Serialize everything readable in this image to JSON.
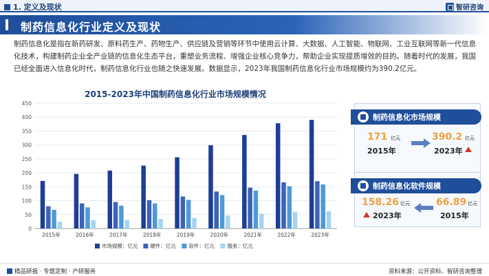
{
  "header": {
    "section": "1. 定义及现状",
    "logo": "智研咨询"
  },
  "title": "制药信息化行业定义及现状",
  "paragraph": "制药信息化是指在新药研发、原料药生产、药物生产、供应链及营销等环节中使用云计算、大数据、人工智能、物联网、工业互联网等新一代信息化技术，构建制药企业全产业链的信息化生态平台，重塑业务流程、增强企业核心竞争力，帮助企业实现提质增效的目的。随着时代的发展，我国已经全面进入信息化时代，制药信息化行业也随之快速发展。数据显示，2023年我国制药信息化行业市场规模约为390.2亿元。",
  "chart_data": {
    "type": "bar",
    "title": "2015-2023年中国制药信息化行业市场规模情况",
    "categories": [
      "2015年",
      "2016年",
      "2017年",
      "2018年",
      "2019年",
      "2020年",
      "2021年",
      "2022年",
      "2023年"
    ],
    "series": [
      {
        "name": "市场规模：亿元",
        "color": "#1c3f94",
        "values": [
          171,
          196,
          208,
          226,
          256,
          299,
          336,
          378,
          390.2
        ]
      },
      {
        "name": "硬件：亿元",
        "color": "#3d63b8",
        "values": [
          80,
          90,
          95,
          102,
          115,
          133,
          147,
          166,
          170
        ]
      },
      {
        "name": "软件：亿元",
        "color": "#4e9ad6",
        "values": [
          67,
          76,
          82,
          90,
          103,
          120,
          136,
          152,
          158.26
        ]
      },
      {
        "name": "服务：亿元",
        "color": "#a8d2f0",
        "values": [
          24,
          30,
          31,
          34,
          38,
          46,
          53,
          60,
          61.94
        ]
      }
    ],
    "yticks": [
      0,
      50,
      100,
      150,
      200,
      250,
      300,
      350,
      400,
      450
    ],
    "ylim": [
      0,
      450
    ],
    "legend": "bottom"
  },
  "cards": [
    {
      "title": "制药信息化市场规模",
      "left_value": "171",
      "left_unit": "亿元",
      "left_year": "2015年",
      "right_value": "390.2",
      "right_unit": "亿元",
      "right_year": "2023年"
    },
    {
      "title": "制药信息化软件规模",
      "left_value": "158.26",
      "left_unit": "亿元",
      "left_year": "2023年",
      "right_value": "66.89",
      "right_unit": "亿元",
      "right_year": "2015年"
    }
  ],
  "footer": {
    "left": "精品研报 · 专题定制 · 产研服务",
    "right": "资料来源：公开资料、智研咨询整理"
  },
  "colors": {
    "primary": "#1f4e9a",
    "accent": "#f0a040",
    "up": "#d23a2a"
  }
}
